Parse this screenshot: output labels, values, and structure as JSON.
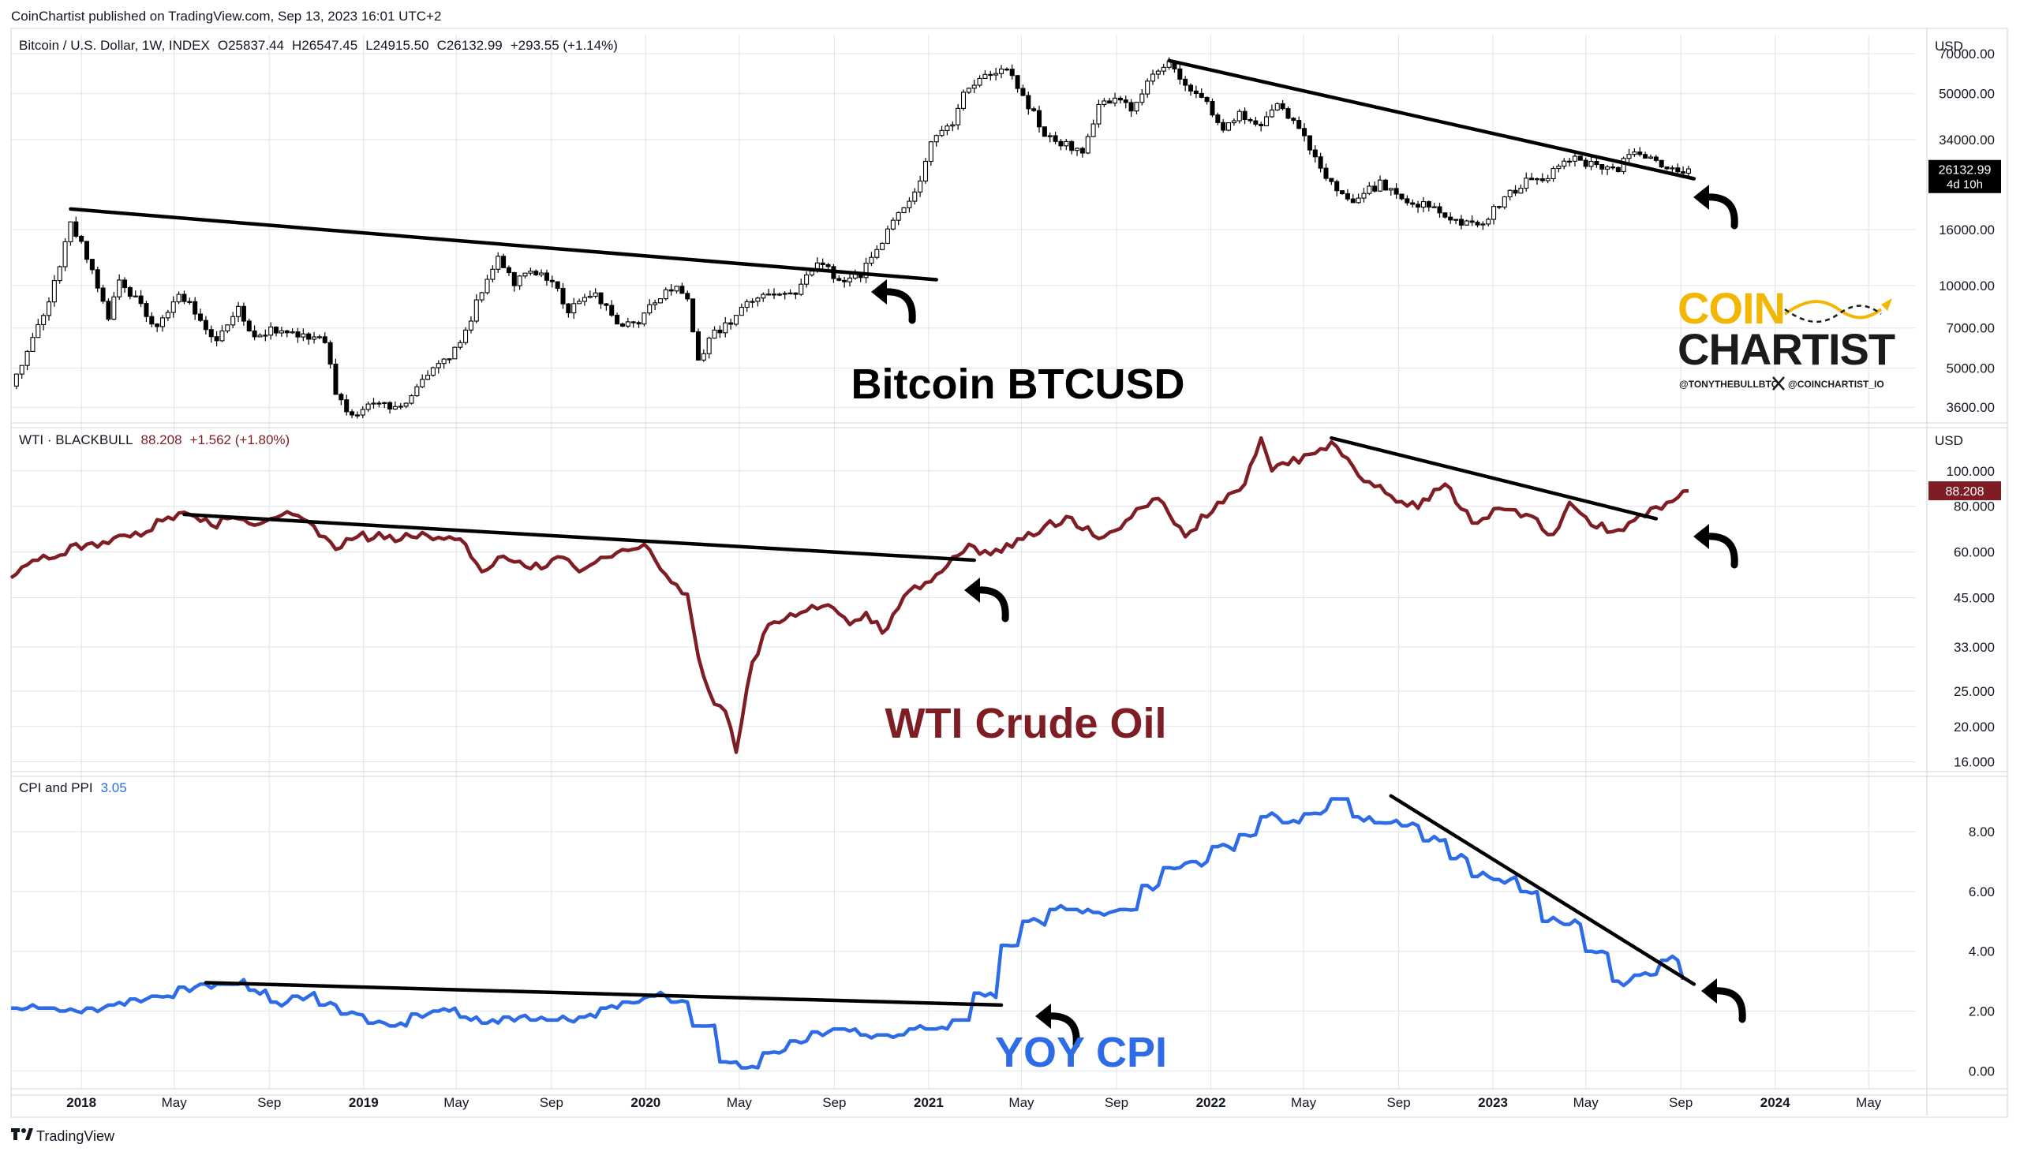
{
  "header": {
    "published": "CoinChartist published on TradingView.com, Sep 13, 2023 16:01 UTC+2"
  },
  "footer": {
    "brand": "TradingView"
  },
  "logo": {
    "word1": "COIN",
    "word2": "CHARTIST",
    "handle1": "@TONYTHEBULLBTC",
    "handle2": "@COINCHARTIST_IO",
    "gold": "#f2b705",
    "dark": "#1b1b1b"
  },
  "colors": {
    "up_candle": "#ffffff",
    "down_candle": "#000000",
    "wti_line": "#7f1d24",
    "cpi_line": "#2e6be6",
    "trendline": "#000000",
    "grid": "#e0e3eb"
  },
  "icons": {
    "trend_arrow": "curved-arrow-icon",
    "x": "x-logo-icon"
  },
  "chart_data": [
    {
      "type": "candlestick",
      "legend": {
        "symbol": "Bitcoin / U.S. Dollar, 1W, INDEX",
        "open": "O25837.44",
        "high": "H26547.45",
        "low": "L24915.50",
        "close": "C26132.99",
        "change": "+293.55 (+1.14%)"
      },
      "label": "Bitcoin BTCUSD",
      "currency": "USD",
      "scale": "log",
      "y_ticks": [
        "70000.00",
        "50000.00",
        "34000.00",
        "16000.00",
        "10000.00",
        "7000.00",
        "5000.00",
        "3600.00"
      ],
      "last_price": "26132.99",
      "countdown": "4d 10h",
      "path_points": [
        [
          "2017-10-02",
          4300
        ],
        [
          "2017-11-06",
          7000
        ],
        [
          "2017-12-04",
          11500
        ],
        [
          "2017-12-18",
          17500
        ],
        [
          "2018-01-01",
          14000
        ],
        [
          "2018-01-15",
          11500
        ],
        [
          "2018-02-05",
          7500
        ],
        [
          "2018-02-19",
          10500
        ],
        [
          "2018-03-19",
          8500
        ],
        [
          "2018-04-09",
          6900
        ],
        [
          "2018-05-07",
          9500
        ],
        [
          "2018-06-04",
          7500
        ],
        [
          "2018-06-25",
          6200
        ],
        [
          "2018-07-23",
          8200
        ],
        [
          "2018-08-13",
          6300
        ],
        [
          "2018-09-03",
          7000
        ],
        [
          "2018-10-08",
          6500
        ],
        [
          "2018-11-12",
          6300
        ],
        [
          "2018-11-26",
          4000
        ],
        [
          "2018-12-17",
          3300
        ],
        [
          "2019-01-07",
          3800
        ],
        [
          "2019-02-11",
          3600
        ],
        [
          "2019-03-04",
          3900
        ],
        [
          "2019-04-01",
          5000
        ],
        [
          "2019-05-06",
          6000
        ],
        [
          "2019-05-27",
          8700
        ],
        [
          "2019-06-24",
          12500
        ],
        [
          "2019-07-15",
          10000
        ],
        [
          "2019-08-05",
          11500
        ],
        [
          "2019-09-02",
          10400
        ],
        [
          "2019-09-23",
          8200
        ],
        [
          "2019-10-28",
          9300
        ],
        [
          "2019-11-25",
          7400
        ],
        [
          "2019-12-16",
          7100
        ],
        [
          "2020-01-13",
          8800
        ],
        [
          "2020-02-10",
          10200
        ],
        [
          "2020-02-24",
          8800
        ],
        [
          "2020-03-09",
          5200
        ],
        [
          "2020-03-23",
          6500
        ],
        [
          "2020-04-27",
          7700
        ],
        [
          "2020-05-25",
          9300
        ],
        [
          "2020-06-22",
          9400
        ],
        [
          "2020-07-13",
          9200
        ],
        [
          "2020-07-27",
          11300
        ],
        [
          "2020-08-17",
          11900
        ],
        [
          "2020-09-07",
          10500
        ],
        [
          "2020-10-05",
          11000
        ],
        [
          "2020-10-26",
          13500
        ],
        [
          "2020-11-23",
          18000
        ],
        [
          "2020-12-21",
          24000
        ],
        [
          "2021-01-04",
          34000
        ],
        [
          "2021-02-01",
          38000
        ],
        [
          "2021-02-15",
          50000
        ],
        [
          "2021-03-15",
          58000
        ],
        [
          "2021-04-12",
          61000
        ],
        [
          "2021-05-17",
          42000
        ],
        [
          "2021-05-31",
          36000
        ],
        [
          "2021-06-21",
          33000
        ],
        [
          "2021-07-19",
          31000
        ],
        [
          "2021-08-09",
          45000
        ],
        [
          "2021-09-06",
          49000
        ],
        [
          "2021-09-20",
          42000
        ],
        [
          "2021-10-18",
          61000
        ],
        [
          "2021-11-08",
          64000
        ],
        [
          "2021-11-29",
          52000
        ],
        [
          "2021-12-20",
          48000
        ],
        [
          "2022-01-17",
          38000
        ],
        [
          "2022-02-07",
          42000
        ],
        [
          "2022-03-07",
          39000
        ],
        [
          "2022-03-28",
          46000
        ],
        [
          "2022-05-02",
          35000
        ],
        [
          "2022-05-16",
          29000
        ],
        [
          "2022-06-13",
          22000
        ],
        [
          "2022-06-27",
          20000
        ],
        [
          "2022-08-08",
          23500
        ],
        [
          "2022-09-12",
          20000
        ],
        [
          "2022-10-17",
          19500
        ],
        [
          "2022-11-07",
          17000
        ],
        [
          "2022-12-19",
          16800
        ],
        [
          "2023-01-16",
          21000
        ],
        [
          "2023-02-13",
          24000
        ],
        [
          "2023-03-13",
          25000
        ],
        [
          "2023-04-10",
          29000
        ],
        [
          "2023-05-15",
          27000
        ],
        [
          "2023-06-12",
          26000
        ],
        [
          "2023-06-26",
          30500
        ],
        [
          "2023-07-31",
          29200
        ],
        [
          "2023-08-14",
          26000
        ],
        [
          "2023-09-11",
          26132
        ]
      ],
      "trendlines": [
        [
          [
            "2017-12-18",
            19000
          ],
          [
            "2021-01-11",
            10500
          ]
        ],
        [
          [
            "2021-11-08",
            66000
          ],
          [
            "2023-09-18",
            24500
          ]
        ]
      ]
    },
    {
      "type": "line",
      "legend": {
        "symbol": "WTI · BLACKBULL",
        "value": "88.208",
        "change": "+1.562 (+1.80%)"
      },
      "label": "WTI Crude Oil",
      "currency": "USD",
      "scale": "log",
      "y_ticks": [
        "100.000",
        "80.000",
        "60.000",
        "45.000",
        "33.000",
        "25.000",
        "20.000",
        "16.000"
      ],
      "last_price": "88.208",
      "points": [
        [
          "2017-10-02",
          51
        ],
        [
          "2017-11-06",
          57
        ],
        [
          "2018-01-08",
          63
        ],
        [
          "2018-03-05",
          66
        ],
        [
          "2018-04-16",
          73
        ],
        [
          "2018-05-21",
          76
        ],
        [
          "2018-06-18",
          71
        ],
        [
          "2018-07-09",
          74
        ],
        [
          "2018-08-13",
          71
        ],
        [
          "2018-10-01",
          76
        ],
        [
          "2018-11-12",
          66
        ],
        [
          "2018-11-26",
          61
        ],
        [
          "2018-12-24",
          66
        ],
        [
          "2019-03-04",
          66
        ],
        [
          "2019-04-22",
          66
        ],
        [
          "2019-05-13",
          63
        ],
        [
          "2019-06-03",
          53
        ],
        [
          "2019-06-24",
          58
        ],
        [
          "2019-08-05",
          54
        ],
        [
          "2019-09-16",
          58
        ],
        [
          "2019-10-07",
          53
        ],
        [
          "2019-11-11",
          58
        ],
        [
          "2019-12-30",
          63
        ],
        [
          "2020-01-27",
          52
        ],
        [
          "2020-02-24",
          46
        ],
        [
          "2020-03-09",
          31
        ],
        [
          "2020-03-30",
          23
        ],
        [
          "2020-04-13",
          22
        ],
        [
          "2020-04-27",
          17
        ],
        [
          "2020-05-18",
          30
        ],
        [
          "2020-06-08",
          38
        ],
        [
          "2020-07-20",
          41
        ],
        [
          "2020-08-24",
          43
        ],
        [
          "2020-09-21",
          38
        ],
        [
          "2020-10-12",
          41
        ],
        [
          "2020-11-02",
          36
        ],
        [
          "2020-12-07",
          47
        ],
        [
          "2021-01-18",
          53
        ],
        [
          "2021-02-22",
          63
        ],
        [
          "2021-03-22",
          59
        ],
        [
          "2021-05-03",
          65
        ],
        [
          "2021-06-28",
          75
        ],
        [
          "2021-08-16",
          66
        ],
        [
          "2021-09-13",
          73
        ],
        [
          "2021-10-25",
          84
        ],
        [
          "2021-11-29",
          66
        ],
        [
          "2022-01-10",
          82
        ],
        [
          "2022-02-14",
          92
        ],
        [
          "2022-03-07",
          123
        ],
        [
          "2022-03-21",
          100
        ],
        [
          "2022-04-11",
          104
        ],
        [
          "2022-05-09",
          111
        ],
        [
          "2022-06-06",
          120
        ],
        [
          "2022-07-11",
          97
        ],
        [
          "2022-08-15",
          87
        ],
        [
          "2022-09-26",
          79
        ],
        [
          "2022-10-31",
          92
        ],
        [
          "2022-12-05",
          72
        ],
        [
          "2023-01-09",
          79
        ],
        [
          "2023-02-13",
          76
        ],
        [
          "2023-03-20",
          67
        ],
        [
          "2023-04-10",
          82
        ],
        [
          "2023-05-08",
          71
        ],
        [
          "2023-06-12",
          69
        ],
        [
          "2023-07-24",
          79
        ],
        [
          "2023-08-14",
          82
        ],
        [
          "2023-09-11",
          88.2
        ]
      ],
      "trendlines": [
        [
          [
            "2018-05-14",
            76
          ],
          [
            "2021-03-01",
            57
          ]
        ],
        [
          [
            "2022-06-06",
            123
          ],
          [
            "2023-07-31",
            74
          ]
        ]
      ]
    },
    {
      "type": "line",
      "legend": {
        "symbol": "CPI and PPI",
        "value": "3.05"
      },
      "label": "YOY CPI",
      "y_ticks": [
        "8.00",
        "6.00",
        "4.00",
        "2.00",
        "0.00"
      ],
      "points": [
        [
          "2017-10-02",
          2.1
        ],
        [
          "2017-11-06",
          2.1
        ],
        [
          "2017-12-04",
          2.0
        ],
        [
          "2018-01-08",
          2.1
        ],
        [
          "2018-02-05",
          2.2
        ],
        [
          "2018-03-05",
          2.4
        ],
        [
          "2018-04-02",
          2.5
        ],
        [
          "2018-05-07",
          2.8
        ],
        [
          "2018-06-04",
          2.9
        ],
        [
          "2018-07-02",
          2.9
        ],
        [
          "2018-08-06",
          2.7
        ],
        [
          "2018-09-03",
          2.3
        ],
        [
          "2018-10-01",
          2.5
        ],
        [
          "2018-11-05",
          2.2
        ],
        [
          "2018-12-03",
          1.9
        ],
        [
          "2019-01-07",
          1.6
        ],
        [
          "2019-02-04",
          1.5
        ],
        [
          "2019-03-04",
          1.9
        ],
        [
          "2019-04-01",
          2.0
        ],
        [
          "2019-05-06",
          1.8
        ],
        [
          "2019-06-03",
          1.6
        ],
        [
          "2019-07-01",
          1.8
        ],
        [
          "2019-08-05",
          1.7
        ],
        [
          "2019-09-02",
          1.7
        ],
        [
          "2019-10-07",
          1.8
        ],
        [
          "2019-11-04",
          2.1
        ],
        [
          "2019-12-02",
          2.3
        ],
        [
          "2020-01-06",
          2.5
        ],
        [
          "2020-02-03",
          2.3
        ],
        [
          "2020-03-02",
          1.5
        ],
        [
          "2020-04-06",
          0.3
        ],
        [
          "2020-05-04",
          0.1
        ],
        [
          "2020-06-01",
          0.6
        ],
        [
          "2020-07-06",
          1.0
        ],
        [
          "2020-08-03",
          1.3
        ],
        [
          "2020-09-07",
          1.4
        ],
        [
          "2020-10-05",
          1.2
        ],
        [
          "2020-11-02",
          1.2
        ],
        [
          "2020-12-07",
          1.4
        ],
        [
          "2021-01-04",
          1.4
        ],
        [
          "2021-02-01",
          1.7
        ],
        [
          "2021-03-01",
          2.6
        ],
        [
          "2021-04-05",
          4.2
        ],
        [
          "2021-05-03",
          5.0
        ],
        [
          "2021-06-07",
          5.4
        ],
        [
          "2021-07-05",
          5.4
        ],
        [
          "2021-08-02",
          5.3
        ],
        [
          "2021-09-06",
          5.4
        ],
        [
          "2021-10-04",
          6.2
        ],
        [
          "2021-11-01",
          6.8
        ],
        [
          "2021-12-06",
          7.0
        ],
        [
          "2022-01-03",
          7.5
        ],
        [
          "2022-02-07",
          7.9
        ],
        [
          "2022-03-07",
          8.5
        ],
        [
          "2022-04-04",
          8.3
        ],
        [
          "2022-05-02",
          8.6
        ],
        [
          "2022-06-06",
          9.1
        ],
        [
          "2022-07-04",
          8.5
        ],
        [
          "2022-08-01",
          8.3
        ],
        [
          "2022-09-05",
          8.2
        ],
        [
          "2022-10-03",
          7.7
        ],
        [
          "2022-11-07",
          7.1
        ],
        [
          "2022-12-05",
          6.5
        ],
        [
          "2023-01-02",
          6.4
        ],
        [
          "2023-02-06",
          6.0
        ],
        [
          "2023-03-06",
          5.0
        ],
        [
          "2023-04-03",
          4.9
        ],
        [
          "2023-05-01",
          4.0
        ],
        [
          "2023-06-05",
          3.0
        ],
        [
          "2023-07-03",
          3.2
        ],
        [
          "2023-08-07",
          3.7
        ],
        [
          "2023-09-04",
          3.05
        ]
      ],
      "trendlines": [
        [
          [
            "2018-06-11",
            2.95
          ],
          [
            "2021-04-05",
            2.2
          ]
        ],
        [
          [
            "2022-08-22",
            9.2
          ],
          [
            "2023-09-18",
            2.9
          ]
        ]
      ]
    }
  ],
  "x_axis": {
    "labels": [
      {
        "date": "2018-01-01",
        "text": "2018",
        "bold": true
      },
      {
        "date": "2018-05-01",
        "text": "May"
      },
      {
        "date": "2018-09-01",
        "text": "Sep"
      },
      {
        "date": "2019-01-01",
        "text": "2019",
        "bold": true
      },
      {
        "date": "2019-05-01",
        "text": "May"
      },
      {
        "date": "2019-09-01",
        "text": "Sep"
      },
      {
        "date": "2020-01-01",
        "text": "2020",
        "bold": true
      },
      {
        "date": "2020-05-01",
        "text": "May"
      },
      {
        "date": "2020-09-01",
        "text": "Sep"
      },
      {
        "date": "2021-01-01",
        "text": "2021",
        "bold": true
      },
      {
        "date": "2021-05-01",
        "text": "May"
      },
      {
        "date": "2021-09-01",
        "text": "Sep"
      },
      {
        "date": "2022-01-01",
        "text": "2022",
        "bold": true
      },
      {
        "date": "2022-05-01",
        "text": "May"
      },
      {
        "date": "2022-09-01",
        "text": "Sep"
      },
      {
        "date": "2023-01-01",
        "text": "2023",
        "bold": true
      },
      {
        "date": "2023-05-01",
        "text": "May"
      },
      {
        "date": "2023-09-01",
        "text": "Sep"
      },
      {
        "date": "2024-01-01",
        "text": "2024",
        "bold": true
      },
      {
        "date": "2024-05-01",
        "text": "May"
      }
    ]
  }
}
